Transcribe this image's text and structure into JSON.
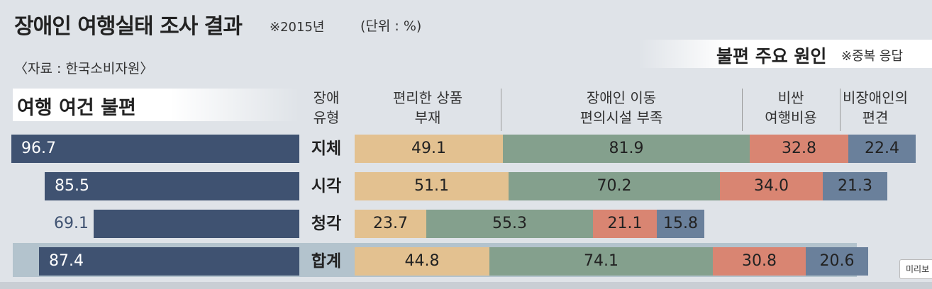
{
  "title": "장애인 여행실태 조사 결과",
  "title_note": "※2015년",
  "unit": "(단위 : %)",
  "source": "〈자료 : 한국소비자원〉",
  "left_panel_title": "여행 여건 불편",
  "right_panel_title": "불편 주요 원인",
  "right_panel_note": "※중복 응답",
  "column_headers": [
    "장애\n유형",
    "편리한 상품\n부재",
    "장애인 이동\n편의시설 부족",
    "비싼\n여행비용",
    "비장애인의\n편견"
  ],
  "colors": {
    "left_bar": "#3f5271",
    "product": "#e3c190",
    "facility": "#84a08d",
    "cost": "#d98572",
    "prejudice": "#6a809b",
    "total_band": "#b3c3cd"
  },
  "chart_data": [
    {
      "type": "bar",
      "title": "여행 여건 불편",
      "orientation": "horizontal",
      "categories": [
        "지체",
        "시각",
        "청각",
        "합계"
      ],
      "values": [
        96.7,
        85.5,
        69.1,
        87.4
      ],
      "value_labels": [
        "96.7",
        "85.5",
        "69.1",
        "87.4"
      ],
      "xlim": [
        0,
        100
      ],
      "grid": false
    },
    {
      "type": "bar",
      "title": "불편 주요 원인",
      "stacked": true,
      "orientation": "horizontal",
      "categories": [
        "지체",
        "시각",
        "청각",
        "합계"
      ],
      "series": [
        {
          "name": "편리한 상품 부재",
          "values": [
            49.1,
            51.1,
            23.7,
            44.8
          ],
          "labels": [
            "49.1",
            "51.1",
            "23.7",
            "44.8"
          ]
        },
        {
          "name": "장애인 이동 편의시설 부족",
          "values": [
            81.9,
            70.2,
            55.3,
            74.1
          ],
          "labels": [
            "81.9",
            "70.2",
            "55.3",
            "74.1"
          ]
        },
        {
          "name": "비싼 여행비용",
          "values": [
            32.8,
            34.0,
            21.1,
            30.8
          ],
          "labels": [
            "32.8",
            "34.0",
            "21.1",
            "30.8"
          ]
        },
        {
          "name": "비장애인의 편견",
          "values": [
            22.4,
            21.3,
            15.8,
            20.6
          ],
          "labels": [
            "22.4",
            "21.3",
            "15.8",
            "20.6"
          ]
        }
      ],
      "grid": false
    }
  ],
  "tooltip_text": "미리보"
}
